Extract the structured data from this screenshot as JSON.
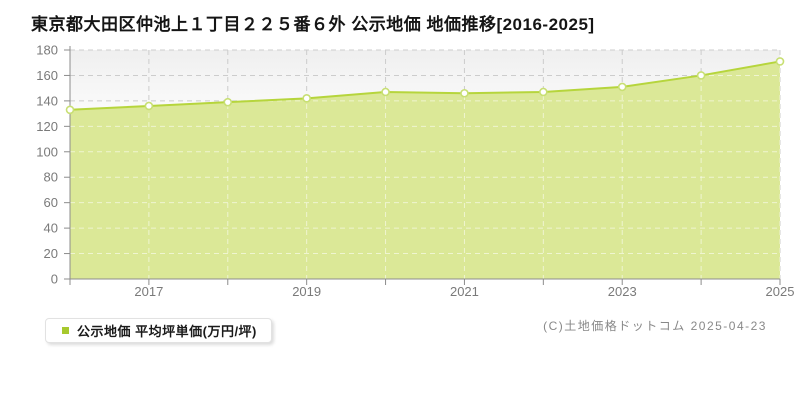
{
  "title": "東京都大田区仲池上１丁目２２５番６外 公示地価 地価推移[2016-2025]",
  "legend": {
    "label": "公示地価 平均坪単価(万円/坪)"
  },
  "footer": {
    "copyright": "(C)土地価格ドットコム 2025-04-23"
  },
  "colors": {
    "area_fill": "#dbe897",
    "line": "#b6d53c",
    "marker_stroke": "#c8df73",
    "marker_fill": "#ffffff",
    "legend_swatch": "#a7c92e",
    "grid": "#cccccc",
    "grid_overlay": "rgba(255,255,255,0.55)",
    "axis": "#8c8c8c",
    "tick_text": "#7a7a7a",
    "plot_bg_top": "#efefef",
    "plot_bg_bottom": "#ffffff"
  },
  "chart_data": {
    "type": "area",
    "title": "東京都大田区仲池上１丁目２２５番６外 公示地価 地価推移[2016-2025]",
    "x": [
      2016,
      2017,
      2018,
      2019,
      2020,
      2021,
      2022,
      2023,
      2024,
      2025
    ],
    "series": [
      {
        "name": "公示地価 平均坪単価(万円/坪)",
        "values": [
          133,
          136,
          139,
          142,
          147,
          146,
          147,
          151,
          160,
          171
        ]
      }
    ],
    "unit": "万円/坪",
    "xlabel": "",
    "ylabel": "",
    "ylim": [
      0,
      180
    ],
    "ytick_step": 20,
    "xtick_labels_shown": [
      "2017",
      "2019",
      "2021",
      "2023",
      "2025"
    ],
    "grid": true,
    "legend_position": "bottom-left"
  }
}
